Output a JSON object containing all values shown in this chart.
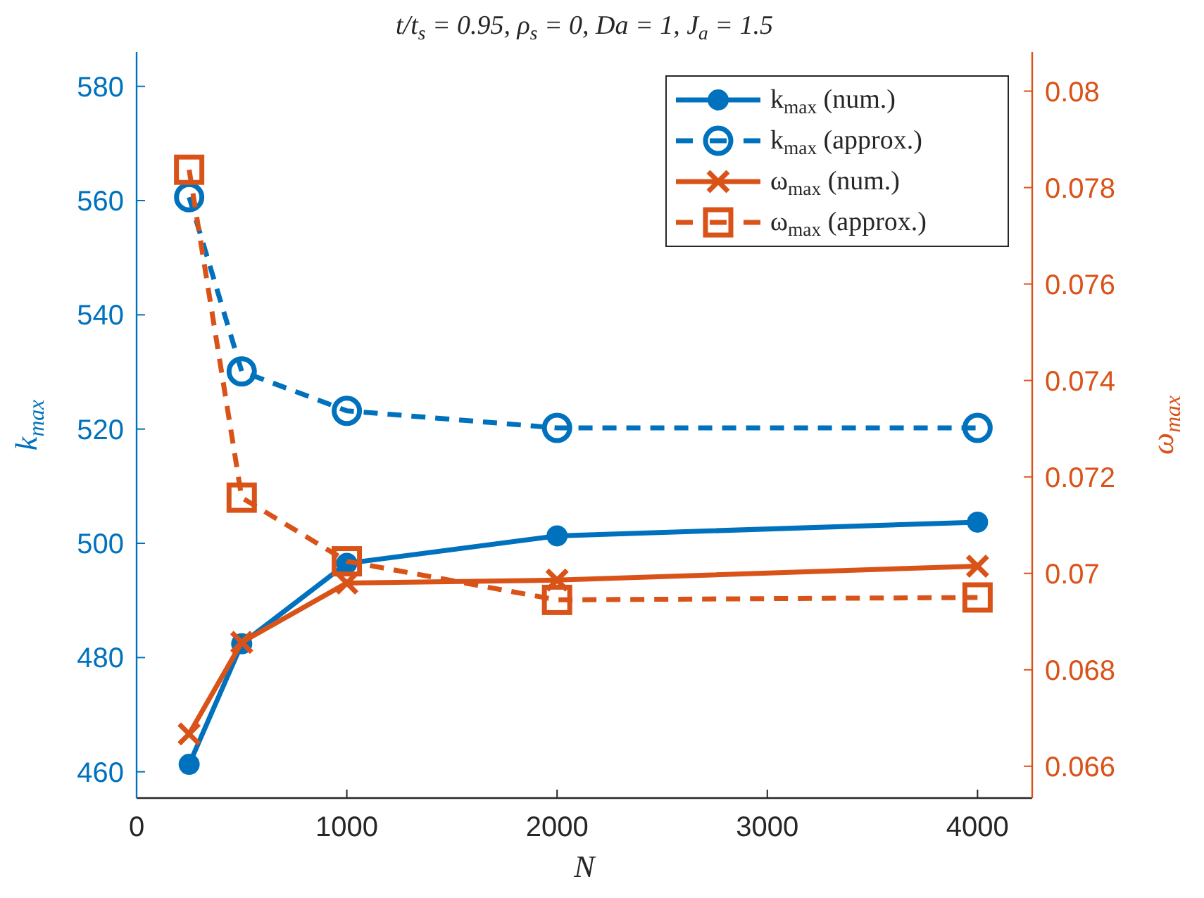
{
  "chart_data": {
    "type": "line",
    "title": "t/t$_{s}$ = 0.95, ρ$_{s}$ = 0, Da = 1, J$_{a}$ = 1.5",
    "xlabel": "N",
    "ylabel": "k$_{max}$",
    "y2label": "ω$_{max}$",
    "x": [
      250,
      500,
      1000,
      2000,
      4000
    ],
    "xlim": [
      0,
      4260
    ],
    "xticks": [
      0,
      1000,
      2000,
      3000,
      4000
    ],
    "ylim": [
      455.4,
      586
    ],
    "yticks": [
      460,
      480,
      500,
      520,
      540,
      560,
      580
    ],
    "y2lim": [
      0.06534,
      0.08081
    ],
    "y2ticks": [
      0.066,
      0.068,
      0.07,
      0.072,
      0.074,
      0.076,
      0.078,
      0.08
    ],
    "legend": "top right",
    "grid": false,
    "series": [
      {
        "name": "k$_{max}$ (num.)",
        "color": "#0072bd",
        "values": [
          461.3,
          482.4,
          496.5,
          501.3,
          503.7
        ],
        "marker": "circle",
        "line_style": "solid"
      },
      {
        "name": "k$_{max}$ (approx.)",
        "color": "#0072bd",
        "values": [
          560.6,
          530.1,
          523.2,
          520.2,
          520.2
        ],
        "marker": "circle",
        "line_style": "dashed"
      },
      {
        "name": "ω$_{max}$ (num.)",
        "color": "#d95319",
        "values": [
          0.06667,
          0.06857,
          0.0698,
          0.06986,
          0.07015
        ],
        "marker": "cross",
        "line_style": "solid",
        "axis": "y2"
      },
      {
        "name": "ω$_{max}$ (approx.)",
        "color": "#d95319",
        "values": [
          0.07837,
          0.07157,
          0.07025,
          0.06945,
          0.0695
        ],
        "marker": "square",
        "line_style": "dashed",
        "axis": "y2"
      }
    ]
  }
}
